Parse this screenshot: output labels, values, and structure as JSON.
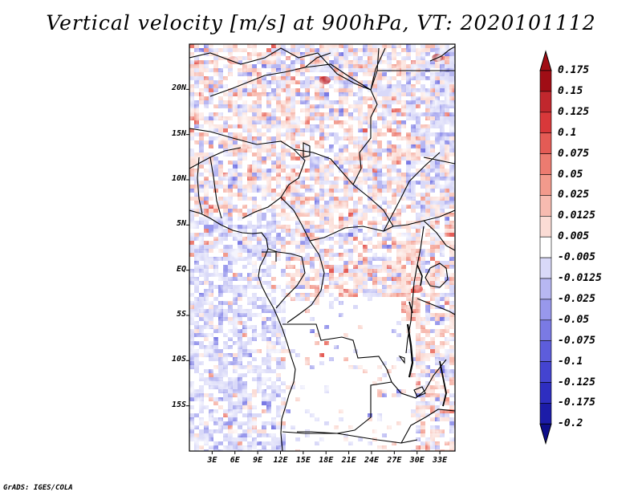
{
  "title": "Vertical velocity [m/s] at 900hPa, VT: 2020101112",
  "credit": "GrADS: IGES/COLA",
  "map": {
    "lon_range": [
      0,
      35
    ],
    "lat_range": [
      -20,
      25
    ],
    "lat_ticks": [
      {
        "value": 20,
        "label": "20N"
      },
      {
        "value": 15,
        "label": "15N"
      },
      {
        "value": 10,
        "label": "10N"
      },
      {
        "value": 5,
        "label": "5N"
      },
      {
        "value": 0,
        "label": "EQ"
      },
      {
        "value": -5,
        "label": "5S"
      },
      {
        "value": -10,
        "label": "10S"
      },
      {
        "value": -15,
        "label": "15S"
      }
    ],
    "lon_ticks": [
      {
        "value": 3,
        "label": "3E"
      },
      {
        "value": 6,
        "label": "6E"
      },
      {
        "value": 9,
        "label": "9E"
      },
      {
        "value": 12,
        "label": "12E"
      },
      {
        "value": 15,
        "label": "15E"
      },
      {
        "value": 18,
        "label": "18E"
      },
      {
        "value": 21,
        "label": "21E"
      },
      {
        "value": 24,
        "label": "24E"
      },
      {
        "value": 27,
        "label": "27E"
      },
      {
        "value": 30,
        "label": "30E"
      },
      {
        "value": 33,
        "label": "33E"
      }
    ]
  },
  "colorbar": {
    "labels": [
      "0.175",
      "0.15",
      "0.125",
      "0.1",
      "0.075",
      "0.05",
      "0.025",
      "0.0125",
      "0.005",
      "-0.005",
      "-0.0125",
      "-0.025",
      "-0.05",
      "-0.075",
      "-0.1",
      "-0.125",
      "-0.175",
      "-0.2"
    ],
    "colors": [
      "#a00d15",
      "#c1272d",
      "#d8383a",
      "#e45b55",
      "#ec7b70",
      "#f29a8c",
      "#f7bbb0",
      "#fbdcd5",
      "#ffffff",
      "#d9d9f8",
      "#b7b7f2",
      "#9898ec",
      "#7a7ae4",
      "#5d5ddb",
      "#4444d0",
      "#2e2ec0",
      "#1c1ca8",
      "#0e0e8a"
    ],
    "top_color": "#a00d15",
    "bottom_color": "#0e0e8a"
  }
}
